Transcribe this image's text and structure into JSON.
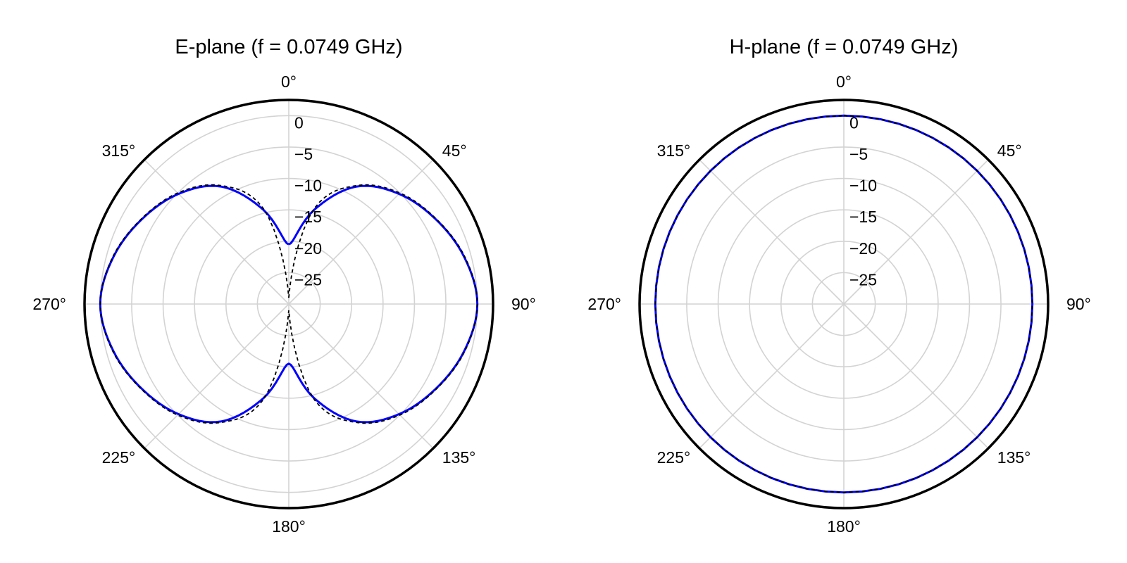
{
  "chart_data": [
    {
      "type": "polar-line",
      "title": "E-plane (f = 0.0749 GHz)",
      "angle_ticks": [
        "0°",
        "45°",
        "90°",
        "135°",
        "180°",
        "225°",
        "270°",
        "315°"
      ],
      "radial_ticks": [
        "0",
        "−5",
        "−10",
        "−15",
        "−20",
        "−25"
      ],
      "radial_tick_values": [
        0,
        -5,
        -10,
        -15,
        -20,
        -25
      ],
      "r_range_db": [
        -30,
        2.5
      ],
      "grid": true,
      "direction": "clockwise",
      "zero_location": "top",
      "series": [
        {
          "style": "solid",
          "color": "#0000ff",
          "x_deg": [
            0,
            15,
            30,
            45,
            60,
            75,
            90,
            105,
            120,
            135,
            150,
            165,
            180,
            195,
            210,
            225,
            240,
            255,
            270,
            285,
            300,
            315,
            330,
            345,
            360
          ],
          "y_db": [
            -20.5,
            -14.5,
            -8.4,
            -5.2,
            -3.0,
            -1.1,
            0.0,
            -1.1,
            -3.0,
            -5.2,
            -8.4,
            -14.5,
            -20.5,
            -14.5,
            -8.4,
            -5.2,
            -3.0,
            -1.1,
            0.0,
            -1.1,
            -3.0,
            -5.2,
            -8.4,
            -14.5,
            -20.5
          ]
        },
        {
          "style": "dashed",
          "color": "#000000",
          "x_deg": [
            0,
            15,
            30,
            45,
            60,
            75,
            90,
            105,
            120,
            135,
            150,
            165,
            180,
            195,
            210,
            225,
            240,
            255,
            270,
            285,
            300,
            315,
            330,
            345,
            360
          ],
          "y_db": [
            -29,
            -14.2,
            -8.2,
            -5.0,
            -2.9,
            -1.0,
            0.0,
            -1.0,
            -2.9,
            -5.0,
            -8.2,
            -14.2,
            -29,
            -14.2,
            -8.2,
            -5.0,
            -2.9,
            -1.0,
            0.0,
            -1.0,
            -2.9,
            -5.0,
            -8.2,
            -14.2,
            -29
          ]
        }
      ]
    },
    {
      "type": "polar-line",
      "title": "H-plane (f = 0.0749 GHz)",
      "angle_ticks": [
        "0°",
        "45°",
        "90°",
        "135°",
        "180°",
        "225°",
        "270°",
        "315°"
      ],
      "radial_ticks": [
        "0",
        "−5",
        "−10",
        "−15",
        "−20",
        "−25"
      ],
      "radial_tick_values": [
        0,
        -5,
        -10,
        -15,
        -20,
        -25
      ],
      "r_range_db": [
        -30,
        2.5
      ],
      "grid": true,
      "direction": "clockwise",
      "zero_location": "top",
      "series": [
        {
          "style": "solid",
          "color": "#0000ff",
          "x_deg": [
            0,
            45,
            90,
            135,
            180,
            225,
            270,
            315,
            360
          ],
          "y_db": [
            0,
            0,
            0,
            0,
            0,
            0,
            0,
            0,
            0
          ]
        },
        {
          "style": "dashed",
          "color": "#000000",
          "x_deg": [
            0,
            45,
            90,
            135,
            180,
            225,
            270,
            315,
            360
          ],
          "y_db": [
            0,
            0,
            0,
            0,
            0,
            0,
            0,
            0,
            0
          ]
        }
      ]
    }
  ]
}
